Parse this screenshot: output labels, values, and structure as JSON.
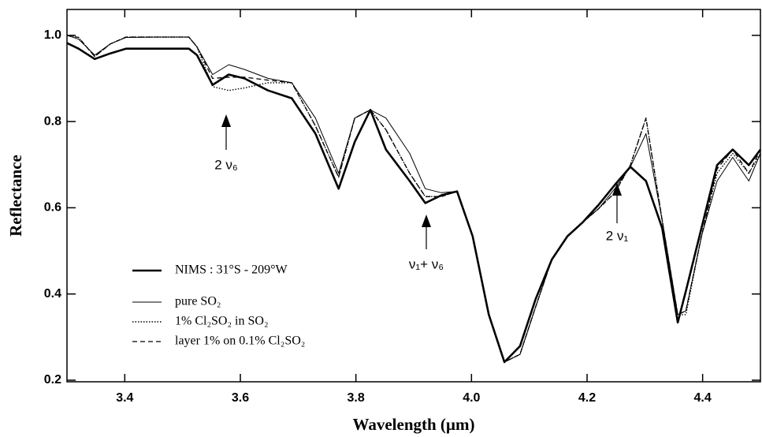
{
  "chart_data": {
    "type": "line",
    "x_label": "Wavelength  (µm)",
    "y_label": "Reflectance",
    "x": [
      3.3,
      3.32,
      3.348,
      3.375,
      3.402,
      3.457,
      3.511,
      3.525,
      3.552,
      3.58,
      3.607,
      3.648,
      3.689,
      3.73,
      3.77,
      3.798,
      3.825,
      3.852,
      3.893,
      3.92,
      3.948,
      3.975,
      4.002,
      4.03,
      4.057,
      4.084,
      4.111,
      4.139,
      4.166,
      4.193,
      4.22,
      4.248,
      4.275,
      4.302,
      4.33,
      4.357,
      4.371,
      4.398,
      4.425,
      4.452,
      4.48,
      4.5
    ],
    "series": [
      {
        "name": "NIMS :  31°S - 209°W",
        "color": "#000000",
        "style": "thick",
        "values": [
          0.982,
          0.969,
          0.945,
          0.958,
          0.969,
          0.969,
          0.969,
          0.954,
          0.885,
          0.909,
          0.9,
          0.872,
          0.854,
          0.772,
          0.644,
          0.753,
          0.827,
          0.735,
          0.662,
          0.611,
          0.629,
          0.638,
          0.534,
          0.352,
          0.242,
          0.279,
          0.388,
          0.48,
          0.534,
          0.567,
          0.607,
          0.653,
          0.695,
          0.662,
          0.553,
          0.334,
          0.407,
          0.553,
          0.699,
          0.735,
          0.699,
          0.735
        ]
      },
      {
        "name": "pure SO₂",
        "color": "#000000",
        "style": "thin",
        "values": [
          1.0,
          0.991,
          0.954,
          0.98,
          0.995,
          0.996,
          0.996,
          0.973,
          0.909,
          0.932,
          0.921,
          0.9,
          0.89,
          0.808,
          0.68,
          0.808,
          0.827,
          0.808,
          0.726,
          0.644,
          0.635,
          0.638,
          0.534,
          0.352,
          0.242,
          0.26,
          0.37,
          0.48,
          0.534,
          0.567,
          0.598,
          0.644,
          0.695,
          0.772,
          0.571,
          0.352,
          0.361,
          0.534,
          0.662,
          0.717,
          0.662,
          0.726
        ]
      },
      {
        "name": "1% Cl₂SO₂ in SO₂",
        "color": "#000000",
        "style": "dotted",
        "values": [
          1.0,
          0.995,
          0.951,
          0.98,
          0.996,
          0.996,
          0.996,
          0.973,
          0.881,
          0.872,
          0.878,
          0.89,
          0.89,
          0.79,
          0.671,
          0.808,
          0.827,
          0.781,
          0.68,
          0.626,
          0.626,
          0.638,
          0.534,
          0.352,
          0.242,
          0.26,
          0.37,
          0.48,
          0.534,
          0.567,
          0.598,
          0.635,
          0.699,
          0.808,
          0.571,
          0.352,
          0.352,
          0.534,
          0.68,
          0.726,
          0.68,
          0.726
        ]
      },
      {
        "name": "layer 1%  on  0.1% Cl₂SO₂",
        "color": "#000000",
        "style": "dashed",
        "values": [
          1.0,
          0.995,
          0.951,
          0.98,
          0.996,
          0.996,
          0.996,
          0.973,
          0.9,
          0.903,
          0.903,
          0.896,
          0.89,
          0.79,
          0.671,
          0.808,
          0.827,
          0.781,
          0.68,
          0.626,
          0.626,
          0.638,
          0.534,
          0.352,
          0.242,
          0.26,
          0.37,
          0.48,
          0.534,
          0.567,
          0.598,
          0.635,
          0.699,
          0.808,
          0.571,
          0.352,
          0.361,
          0.534,
          0.69,
          0.735,
          0.68,
          0.735
        ]
      }
    ],
    "xlim": [
      3.3,
      4.5
    ],
    "ylim": [
      0.2,
      1.06
    ],
    "xticks": [
      3.4,
      3.6,
      3.8,
      {
        "value": 4,
        "label": "4.0"
      },
      4.2,
      4.4
    ],
    "yticks": [
      0.2,
      0.4,
      0.6,
      0.8,
      {
        "value": 1,
        "label": "1.0"
      }
    ],
    "annotations": [
      "2 ν₆",
      "ν₁+ ν₆",
      "2 ν₁"
    ],
    "legend": "lower left"
  }
}
